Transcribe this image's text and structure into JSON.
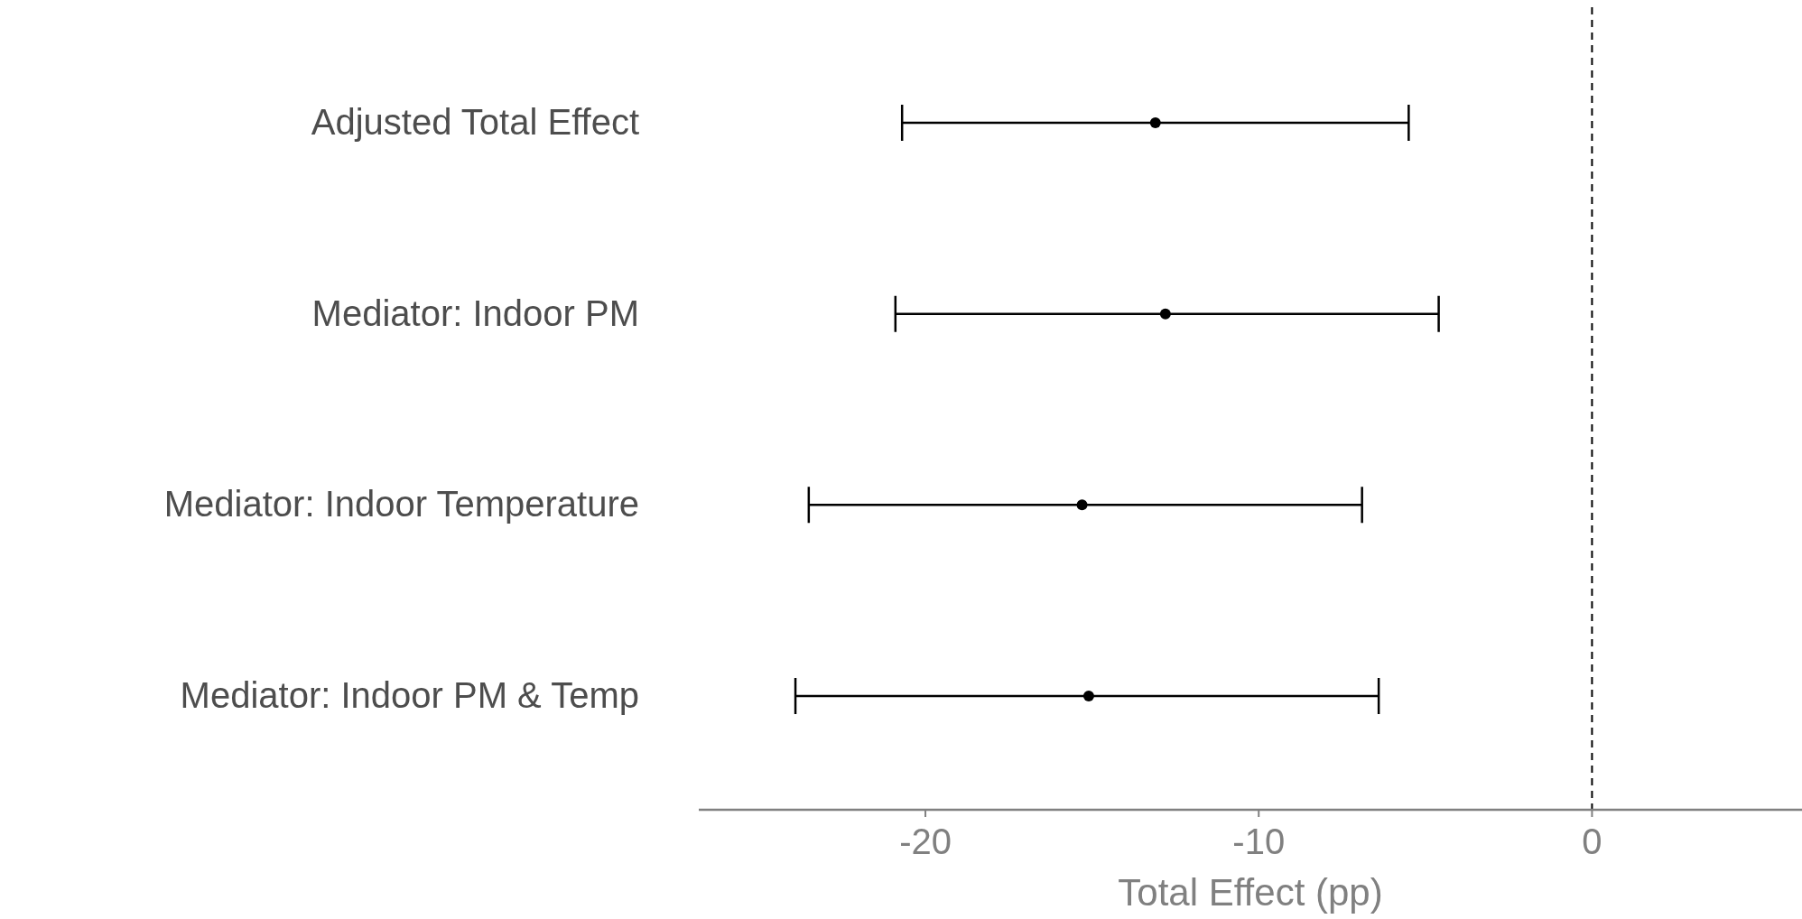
{
  "chart_data": {
    "type": "scatter",
    "orientation": "horizontal",
    "categories": [
      "Adjusted Total Effect",
      "Mediator: Indoor PM",
      "Mediator: Indoor Temperature",
      "Mediator: Indoor PM & Temp"
    ],
    "values": [
      -13.1,
      -12.8,
      -15.3,
      -15.1
    ],
    "errors": [
      [
        -20.7,
        -5.5
      ],
      [
        -20.9,
        -4.6
      ],
      [
        -23.5,
        -6.9
      ],
      [
        -23.9,
        -6.4
      ]
    ],
    "color": "#000000",
    "marker": "circle",
    "xlim": [
      -26.8,
      6.3
    ],
    "xticks": [
      -20,
      -10,
      0
    ],
    "xlabel": "Total Effect (pp)",
    "ref_lines": [
      {
        "axis": "x",
        "value": 0,
        "color": "#000000",
        "line_style": "dashed"
      }
    ],
    "grid": false
  }
}
